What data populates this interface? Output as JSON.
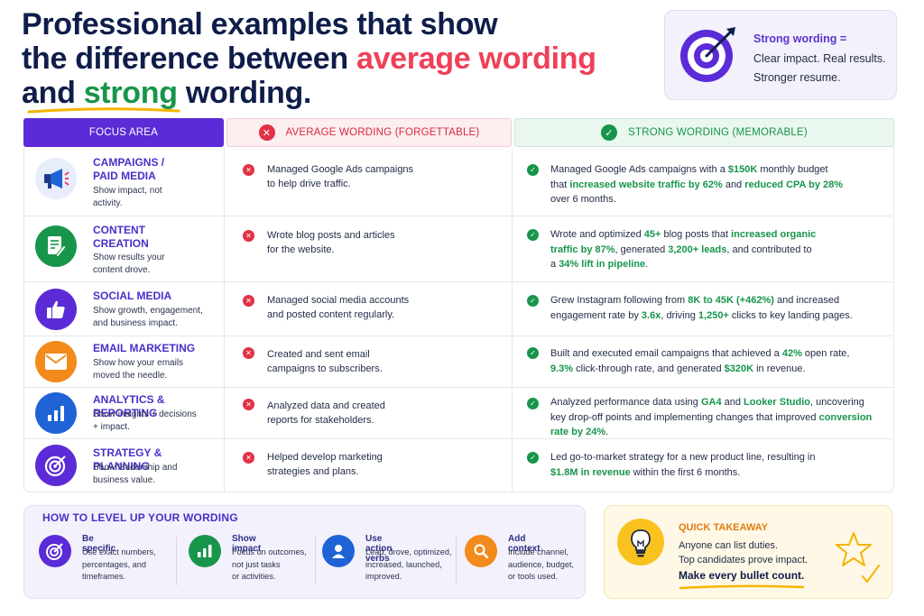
{
  "title": {
    "line1": "Professional examples that show",
    "line2_prefix": "the difference between ",
    "line2_highlight": "average wording",
    "line3_prefix": "and ",
    "line3_highlight": "strong",
    "line3_suffix": " wording."
  },
  "callout": {
    "heading": "Strong wording =",
    "line1": "Clear impact. Real results.",
    "line2": "Stronger resume.",
    "icon": "target-icon"
  },
  "columns": {
    "focus": "FOCUS AREA",
    "average": "AVERAGE WORDING (FORGETTABLE)",
    "strong": "STRONG WORDING (MEMORABLE)"
  },
  "rows": [
    {
      "icon": "megaphone-icon",
      "name_line1": "CAMPAIGNS /",
      "name_line2": "PAID MEDIA",
      "desc_line1": "Show impact, not",
      "desc_line2": "activity.",
      "average_line1": "Managed Google Ads campaigns",
      "average_line2": "to help drive traffic.",
      "strong": [
        [
          {
            "t": "Managed Google Ads campaigns with a "
          },
          {
            "t": "$150K",
            "b": true
          },
          {
            "t": " monthly budget"
          }
        ],
        [
          {
            "t": "that "
          },
          {
            "t": "increased website traffic by 62%",
            "b": true
          },
          {
            "t": " and "
          },
          {
            "t": "reduced CPA by 28%",
            "b": true
          }
        ],
        [
          {
            "t": "over 6 months."
          }
        ]
      ]
    },
    {
      "icon": "document-edit-icon",
      "name_line1": "CONTENT",
      "name_line2": "CREATION",
      "desc_line1": "Show results your",
      "desc_line2": "content drove.",
      "average_line1": "Wrote blog posts and articles",
      "average_line2": "for the website.",
      "strong": [
        [
          {
            "t": "Wrote and optimized "
          },
          {
            "t": "45+",
            "b": true
          },
          {
            "t": " blog posts that "
          },
          {
            "t": "increased organic",
            "b": true
          }
        ],
        [
          {
            "t": "traffic by 87%",
            "b": true
          },
          {
            "t": ", generated "
          },
          {
            "t": "3,200+ leads",
            "b": true
          },
          {
            "t": ", and contributed to"
          }
        ],
        [
          {
            "t": "a "
          },
          {
            "t": "34% lift in pipeline",
            "b": true
          },
          {
            "t": "."
          }
        ]
      ]
    },
    {
      "icon": "thumbs-up-icon",
      "name_line1": "SOCIAL MEDIA",
      "name_line2": "",
      "desc_line1": "Show growth, engagement,",
      "desc_line2": "and business impact.",
      "average_line1": "Managed social media accounts",
      "average_line2": "and posted content regularly.",
      "strong": [
        [
          {
            "t": "Grew Instagram following from "
          },
          {
            "t": "8K to 45K (+462%)",
            "b": true
          },
          {
            "t": " and increased"
          }
        ],
        [
          {
            "t": "engagement rate by "
          },
          {
            "t": "3.6x",
            "b": true
          },
          {
            "t": ", driving "
          },
          {
            "t": "1,250+",
            "b": true
          },
          {
            "t": " clicks to key landing pages."
          }
        ]
      ]
    },
    {
      "icon": "envelope-icon",
      "name_line1": "EMAIL MARKETING",
      "name_line2": "",
      "desc_line1": "Show how your emails",
      "desc_line2": "moved the needle.",
      "average_line1": "Created and sent email",
      "average_line2": "campaigns to subscribers.",
      "strong": [
        [
          {
            "t": "Built and executed email campaigns that achieved a "
          },
          {
            "t": "42%",
            "b": true
          },
          {
            "t": " open rate,"
          }
        ],
        [
          {
            "t": "9.3%",
            "b": true
          },
          {
            "t": " click-through rate, and generated "
          },
          {
            "t": "$320K",
            "b": true
          },
          {
            "t": " in revenue."
          }
        ]
      ]
    },
    {
      "icon": "bar-chart-icon",
      "name_line1": "ANALYTICS & REPORTING",
      "name_line2": "",
      "desc_line1": "Show insights + decisions",
      "desc_line2": "+ impact.",
      "average_line1": "Analyzed data and created",
      "average_line2": "reports for stakeholders.",
      "strong": [
        [
          {
            "t": "Analyzed performance data using "
          },
          {
            "t": "GA4",
            "b": true
          },
          {
            "t": " and "
          },
          {
            "t": "Looker Studio",
            "b": true
          },
          {
            "t": ", uncovering"
          }
        ],
        [
          {
            "t": "key drop-off points and implementing changes that improved "
          },
          {
            "t": "conversion",
            "b": true
          }
        ],
        [
          {
            "t": "rate by 24%",
            "b": true
          },
          {
            "t": "."
          }
        ]
      ]
    },
    {
      "icon": "target-icon",
      "name_line1": "STRATEGY & PLANNING",
      "name_line2": "",
      "desc_line1": "Show leadership and",
      "desc_line2": "business value.",
      "average_line1": "Helped develop marketing",
      "average_line2": "strategies and plans.",
      "strong": [
        [
          {
            "t": "Led go-to-market strategy for a new product line, resulting in"
          }
        ],
        [
          {
            "t": "$1.8M in revenue",
            "b": true
          },
          {
            "t": " within the first 6 months."
          }
        ]
      ]
    }
  ],
  "tips": {
    "title": "HOW TO LEVEL UP YOUR WORDING",
    "items": [
      {
        "icon": "target-icon",
        "title": "Be specific",
        "desc_line1": "Use exact numbers,",
        "desc_line2": "percentages, and",
        "desc_line3": "timeframes."
      },
      {
        "icon": "bar-chart-icon",
        "title": "Show impact",
        "desc_line1": "Focus on outcomes,",
        "desc_line2": "not just tasks",
        "desc_line3": "or activities."
      },
      {
        "icon": "user-icon",
        "title": "Use action verbs",
        "desc_line1": "Lead, drove, optimized,",
        "desc_line2": "increased, launched,",
        "desc_line3": "improved."
      },
      {
        "icon": "magnifier-icon",
        "title": "Add context",
        "desc_line1": "Include channel,",
        "desc_line2": "audience, budget,",
        "desc_line3": "or tools used."
      }
    ]
  },
  "takeaway": {
    "heading": "QUICK TAKEAWAY",
    "line1": "Anyone can list duties.",
    "line2": "Top candidates prove impact.",
    "line3": "Make every bullet count.",
    "icon": "lightbulb-icon"
  },
  "colors": {
    "purple": "#5a2bd6",
    "red": "#ef4058",
    "green": "#17954a",
    "orange": "#f28a1c",
    "blue": "#1f63d6"
  }
}
